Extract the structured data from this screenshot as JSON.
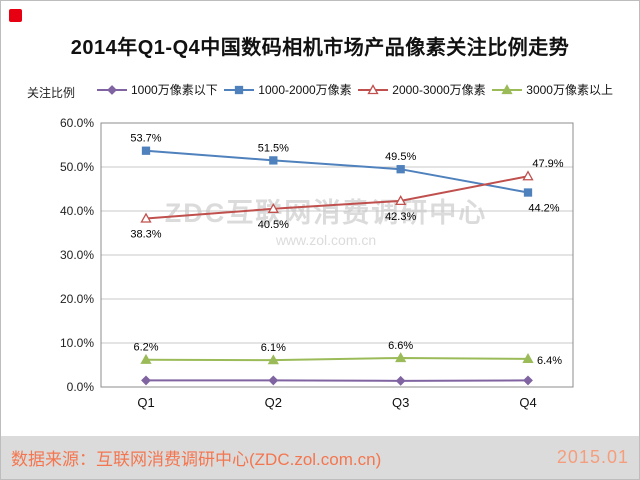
{
  "title": "2014年Q1-Q4中国数码相机市场产品像素关注比例走势",
  "watermark": {
    "line1": "ZDC互联网消费调研中心",
    "line2": "www.zol.com.cn"
  },
  "footer": {
    "source": "数据来源：互联网消费调研中心(ZDC.zol.com.cn)",
    "date": "2015.01"
  },
  "chart_data": {
    "type": "line",
    "title": "2014年Q1-Q4中国数码相机市场产品像素关注比例走势",
    "xlabel": "",
    "ylabel": "关注比例",
    "categories": [
      "Q1",
      "Q2",
      "Q3",
      "Q4"
    ],
    "ylim": [
      0,
      60
    ],
    "ytick_step": 10,
    "ytick_labels": [
      "0.0%",
      "10.0%",
      "20.0%",
      "30.0%",
      "40.0%",
      "50.0%",
      "60.0%"
    ],
    "grid": true,
    "legend_position": "top",
    "series": [
      {
        "name": "1000万像素以下",
        "color": "#8064A2",
        "marker": "diamond",
        "marker_open": false,
        "values": [
          1.5,
          1.5,
          1.4,
          1.5
        ],
        "labels": [
          "",
          "",
          "",
          ""
        ],
        "label_pos": [
          "",
          "",
          "",
          ""
        ]
      },
      {
        "name": "1000-2000万像素",
        "color": "#4F81BD",
        "marker": "square",
        "marker_open": false,
        "values": [
          53.7,
          51.5,
          49.5,
          44.2
        ],
        "labels": [
          "53.7%",
          "51.5%",
          "49.5%",
          "44.2%"
        ],
        "label_pos": [
          "above",
          "above",
          "above",
          "below-right"
        ]
      },
      {
        "name": "2000-3000万像素",
        "color": "#C0504D",
        "marker": "triangle",
        "marker_open": true,
        "values": [
          38.3,
          40.5,
          42.3,
          47.9
        ],
        "labels": [
          "38.3%",
          "40.5%",
          "42.3%",
          "47.9%"
        ],
        "label_pos": [
          "below",
          "below",
          "below",
          "above-right"
        ]
      },
      {
        "name": "3000万像素以上",
        "color": "#9BBB59",
        "marker": "triangle",
        "marker_open": false,
        "values": [
          6.2,
          6.1,
          6.6,
          6.4
        ],
        "labels": [
          "6.2%",
          "6.1%",
          "6.6%",
          "6.4%"
        ],
        "label_pos": [
          "above",
          "above",
          "above",
          "right"
        ]
      }
    ]
  }
}
